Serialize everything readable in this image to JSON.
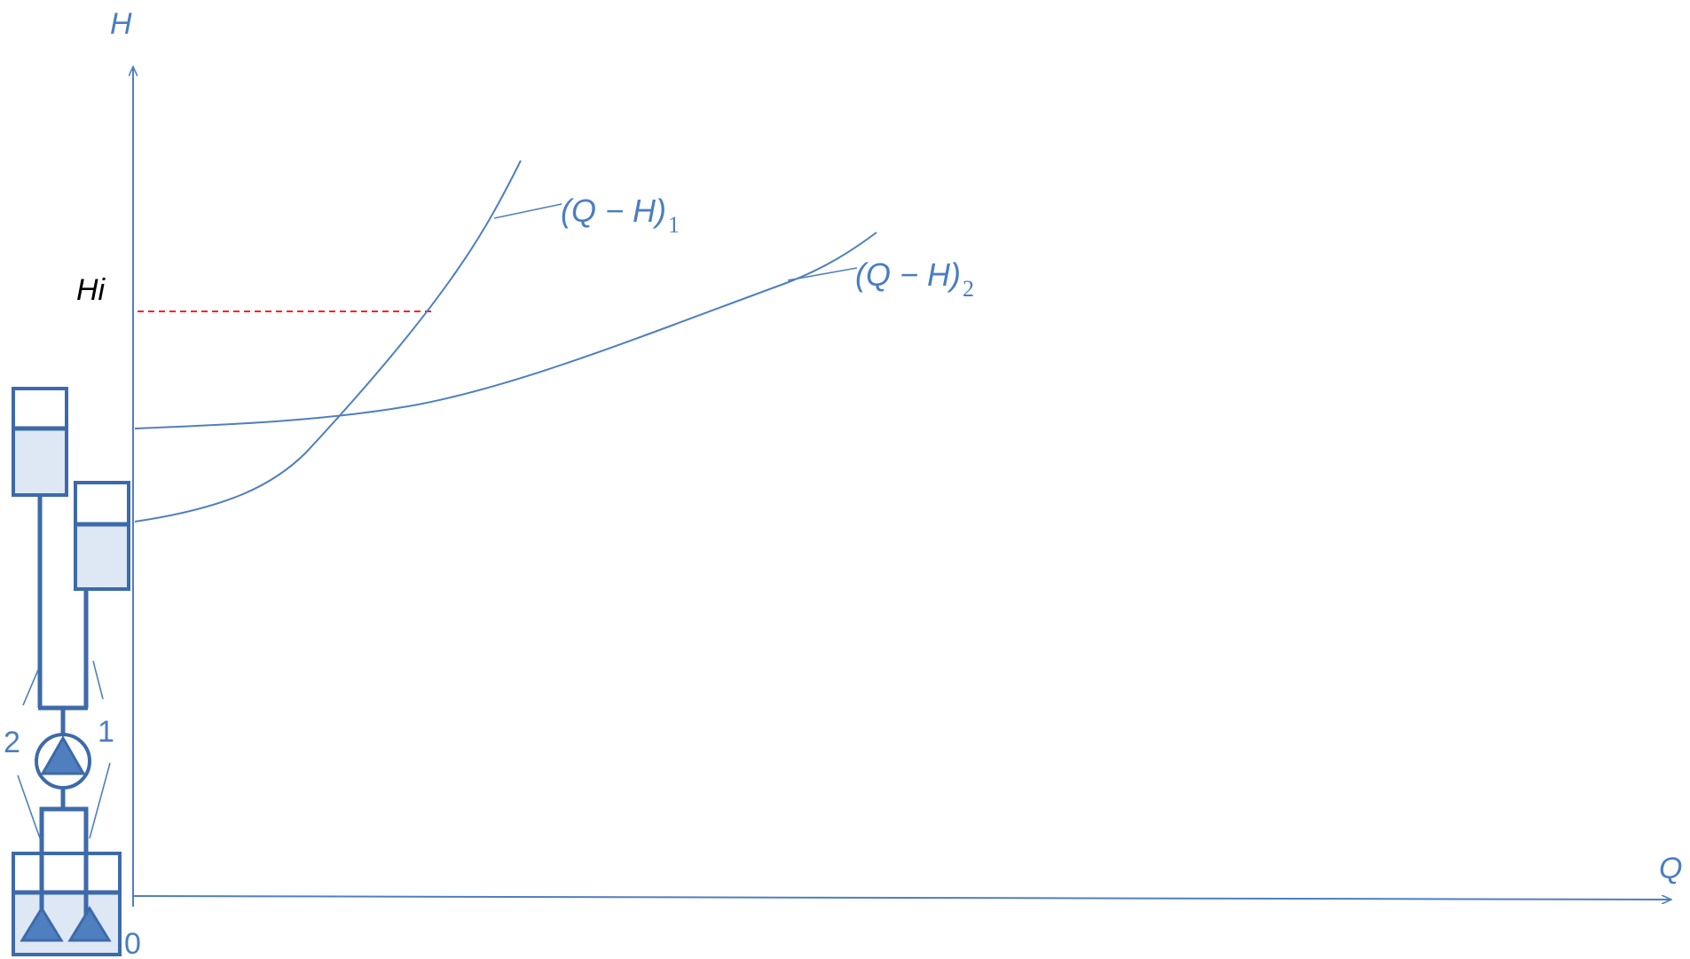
{
  "diagram": {
    "axes": {
      "y_label": "H",
      "x_label": "Q",
      "origin_label": "0"
    },
    "level_marker": {
      "label": "Hi",
      "color": "#ff0000"
    },
    "curves": [
      {
        "label": "(Q − H)",
        "subscript": "1"
      },
      {
        "label": "(Q − H)",
        "subscript": "2"
      }
    ],
    "pipe_labels": {
      "left": "2",
      "right": "1"
    },
    "colors": {
      "line": "#4f7fbf",
      "fill_dark": "#3d6aaa",
      "water": "#dde8f4",
      "text": "#4a7ec0",
      "black": "#000000"
    }
  }
}
